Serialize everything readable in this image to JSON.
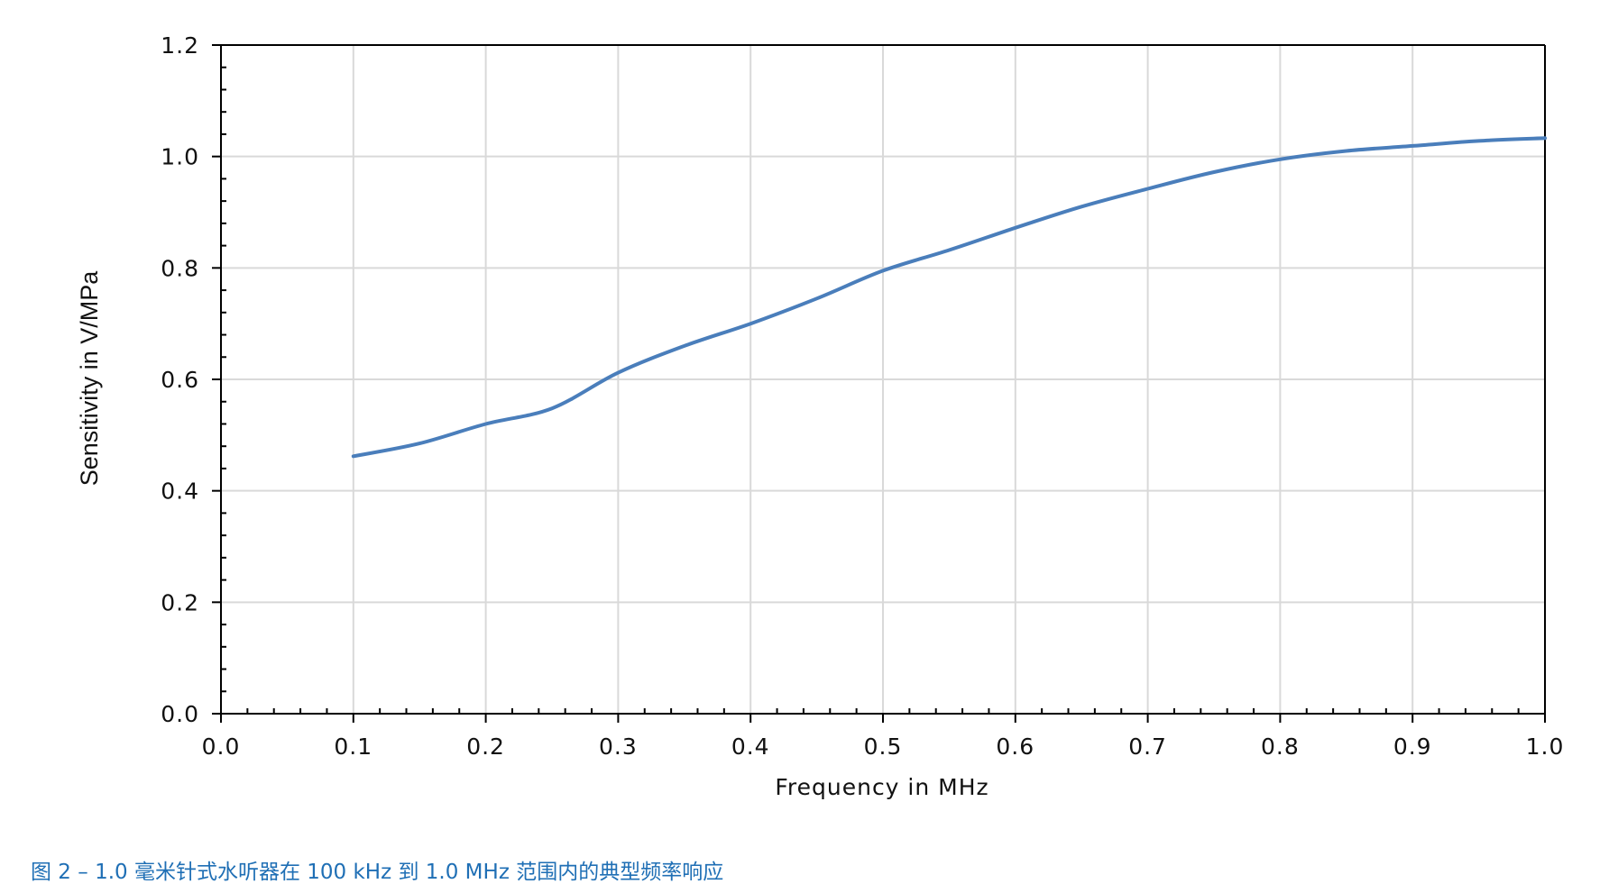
{
  "chart_data": {
    "type": "line",
    "xlabel": "Frequency in MHz",
    "ylabel": "Sensitivity in V/MPa",
    "xlim": [
      0.0,
      1.0
    ],
    "ylim": [
      0.0,
      1.2
    ],
    "x_ticks": [
      "0.0",
      "0.1",
      "0.2",
      "0.3",
      "0.4",
      "0.5",
      "0.6",
      "0.7",
      "0.8",
      "0.9",
      "1.0"
    ],
    "y_ticks": [
      "0.0",
      "0.2",
      "0.4",
      "0.6",
      "0.8",
      "1.0",
      "1.2"
    ],
    "grid": true,
    "series": [
      {
        "color": "#4a7ebb",
        "x": [
          0.1,
          0.15,
          0.2,
          0.25,
          0.3,
          0.35,
          0.4,
          0.45,
          0.5,
          0.55,
          0.6,
          0.65,
          0.7,
          0.75,
          0.8,
          0.85,
          0.9,
          0.95,
          1.0
        ],
        "y": [
          0.462,
          0.485,
          0.52,
          0.548,
          0.612,
          0.66,
          0.7,
          0.745,
          0.795,
          0.832,
          0.872,
          0.91,
          0.942,
          0.972,
          0.995,
          1.01,
          1.019,
          1.028,
          1.033
        ]
      }
    ]
  },
  "caption": "图 2 – 1.0 毫米针式水听器在 100 kHz 到 1.0 MHz 范围内的典型频率响应"
}
